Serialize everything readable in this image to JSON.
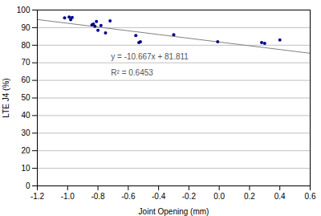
{
  "chart_data": {
    "type": "scatter",
    "xlabel": "Joint Opening (mm)",
    "ylabel": "LTE J4 (%)",
    "xlim": [
      -1.2,
      0.6
    ],
    "ylim": [
      0,
      100
    ],
    "xticks": [
      -1.2,
      {
        "value": -1.0,
        "label": "-1.0"
      },
      -0.8,
      -0.6,
      -0.4,
      -0.2,
      {
        "value": 0.0,
        "label": "0.0"
      },
      0.2,
      0.4,
      0.6
    ],
    "yticks": [
      0,
      10,
      20,
      30,
      40,
      50,
      60,
      70,
      80,
      90,
      100
    ],
    "grid": "y",
    "series": [
      {
        "type": "scatter",
        "color": "#00008B",
        "marker": "circle",
        "x": [
          -1.02,
          -0.99,
          -0.98,
          -0.97,
          -0.84,
          -0.83,
          -0.82,
          -0.81,
          -0.8,
          -0.78,
          -0.75,
          -0.72,
          -0.55,
          -0.53,
          -0.52,
          -0.3,
          -0.01,
          0.28,
          0.3,
          0.4
        ],
        "values": [
          95.5,
          96.0,
          94.5,
          95.8,
          91.5,
          92.0,
          90.8,
          93.5,
          88.5,
          91.2,
          87.0,
          93.8,
          85.5,
          81.5,
          82.0,
          86.0,
          82.0,
          81.5,
          81.0,
          83.0
        ]
      },
      {
        "type": "line",
        "color": "#808080",
        "line_style": "solid",
        "x": [
          -1.2,
          0.6
        ],
        "values": [
          94.6114,
          75.4108
        ]
      }
    ],
    "annotations": [
      "y = -10.667x + 81.811",
      "R² = 0.6453"
    ]
  }
}
